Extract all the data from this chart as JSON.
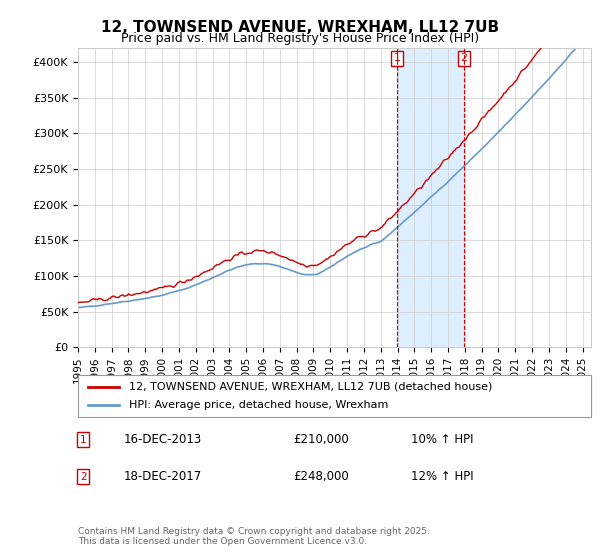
{
  "title": "12, TOWNSEND AVENUE, WREXHAM, LL12 7UB",
  "subtitle": "Price paid vs. HM Land Registry's House Price Index (HPI)",
  "ylabel_ticks": [
    "£0",
    "£50K",
    "£100K",
    "£150K",
    "£200K",
    "£250K",
    "£300K",
    "£350K",
    "£400K"
  ],
  "ytick_values": [
    0,
    50000,
    100000,
    150000,
    200000,
    250000,
    300000,
    350000,
    400000
  ],
  "ylim": [
    0,
    420000
  ],
  "x_start_year": 1995,
  "x_end_year": 2025,
  "red_line_color": "#cc0000",
  "blue_line_color": "#6699cc",
  "shade_color": "#ddeeff",
  "vline_color": "#cc0000",
  "transaction1_x": 2013.96,
  "transaction2_x": 2017.96,
  "transaction1_label": "1",
  "transaction2_label": "2",
  "legend_red": "12, TOWNSEND AVENUE, WREXHAM, LL12 7UB (detached house)",
  "legend_blue": "HPI: Average price, detached house, Wrexham",
  "ann1_date": "16-DEC-2013",
  "ann1_price": "£210,000",
  "ann1_hpi": "10% ↑ HPI",
  "ann2_date": "18-DEC-2017",
  "ann2_price": "£248,000",
  "ann2_hpi": "12% ↑ HPI",
  "footer": "Contains HM Land Registry data © Crown copyright and database right 2025.\nThis data is licensed under the Open Government Licence v3.0.",
  "title_fontsize": 11,
  "subtitle_fontsize": 9,
  "tick_fontsize": 8,
  "legend_fontsize": 8,
  "ann_fontsize": 8.5,
  "footer_fontsize": 6.5
}
